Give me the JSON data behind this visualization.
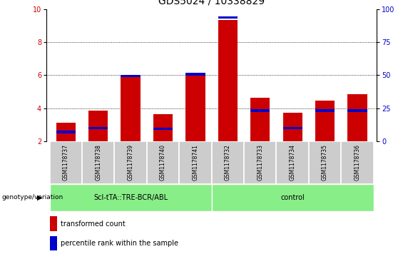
{
  "title": "GDS5024 / 10338829",
  "samples": [
    "GSM1178737",
    "GSM1178738",
    "GSM1178739",
    "GSM1178740",
    "GSM1178741",
    "GSM1178732",
    "GSM1178733",
    "GSM1178734",
    "GSM1178735",
    "GSM1178736"
  ],
  "red_values": [
    3.1,
    3.85,
    5.9,
    3.65,
    6.0,
    9.35,
    4.65,
    3.7,
    4.45,
    4.85
  ],
  "blue_values": [
    2.55,
    2.8,
    5.95,
    2.75,
    6.05,
    9.5,
    3.85,
    2.8,
    3.85,
    3.85
  ],
  "ylim_left": [
    2,
    10
  ],
  "ylim_right": [
    0,
    100
  ],
  "yticks_left": [
    2,
    4,
    6,
    8,
    10
  ],
  "yticks_right": [
    0,
    25,
    50,
    75,
    100
  ],
  "group1_label": "Scl-tTA::TRE-BCR/ABL",
  "group2_label": "control",
  "group1_indices": [
    0,
    1,
    2,
    3,
    4
  ],
  "group2_indices": [
    5,
    6,
    7,
    8,
    9
  ],
  "genotype_label": "genotype/variation",
  "legend_red": "transformed count",
  "legend_blue": "percentile rank within the sample",
  "bar_color_red": "#cc0000",
  "bar_color_blue": "#0000cc",
  "group_bg_color": "#88ee88",
  "sample_bg_color": "#cccccc",
  "bar_width": 0.6,
  "dotted_grid_color": "#000000",
  "title_fontsize": 10,
  "tick_fontsize": 7,
  "label_fontsize": 7
}
